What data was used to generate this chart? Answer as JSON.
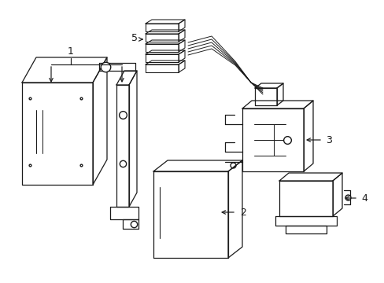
{
  "background_color": "#ffffff",
  "line_color": "#1a1a1a",
  "line_width": 0.9,
  "label_fontsize": 9,
  "fig_width": 4.89,
  "fig_height": 3.6,
  "dpi": 100
}
